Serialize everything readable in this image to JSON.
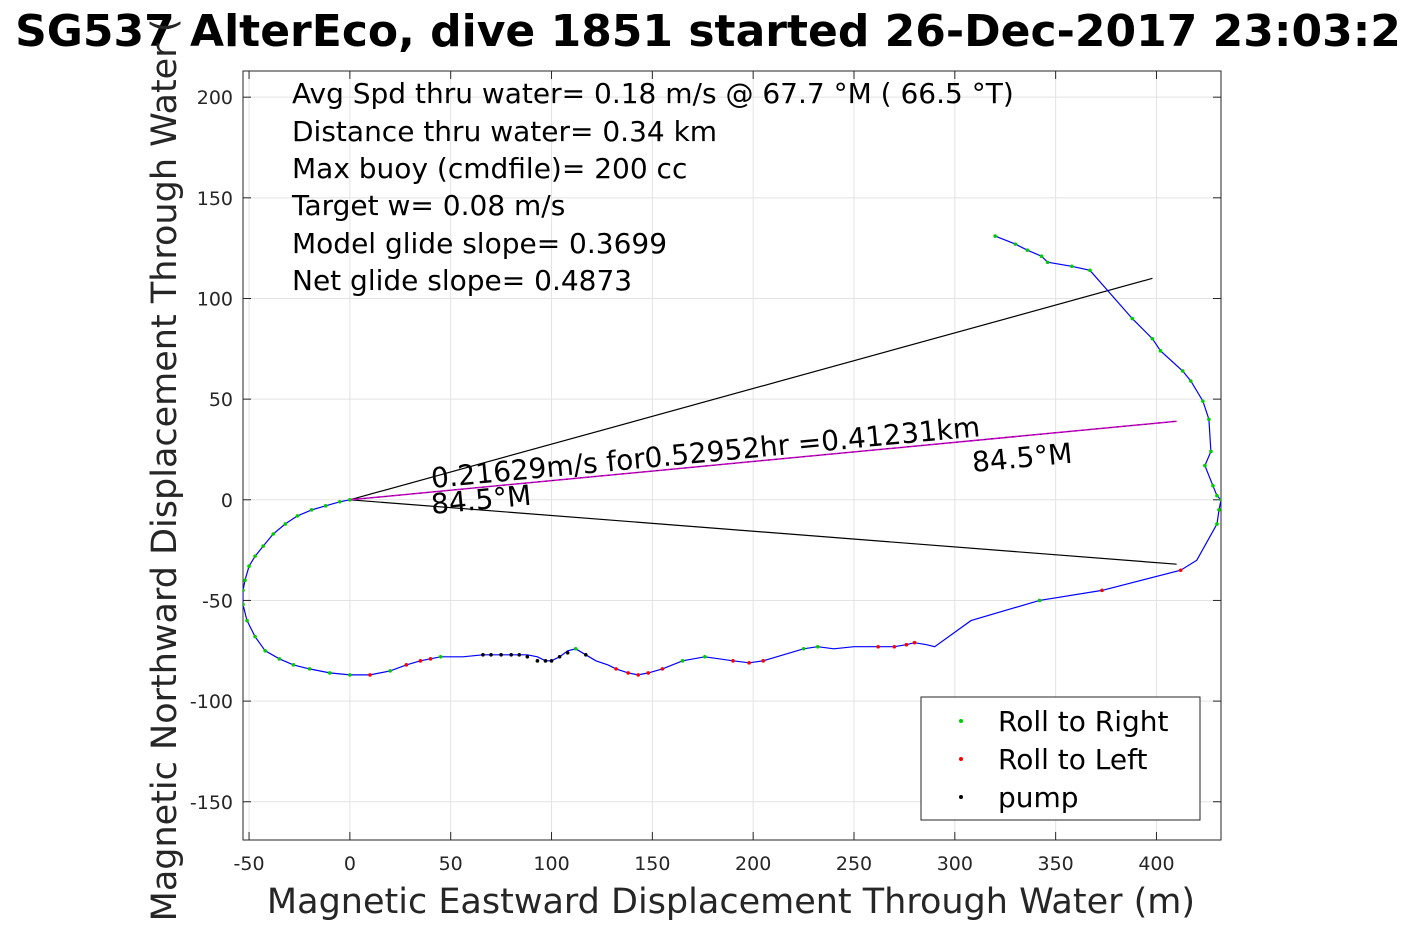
{
  "chart_data": {
    "type": "scatter",
    "title": "SG537 AlterEco, dive 1851 started 26-Dec-2017 23:03:2",
    "xlabel": "Magnetic Eastward Displacement Through Water (m)",
    "ylabel": "Magnetic Northward Displacement Through Water (",
    "xlim": [
      -53,
      432
    ],
    "ylim": [
      -169,
      213
    ],
    "xticks": [
      -50,
      0,
      50,
      100,
      150,
      200,
      250,
      300,
      350,
      400
    ],
    "yticks": [
      -150,
      -100,
      -50,
      0,
      50,
      100,
      150,
      200
    ],
    "grid": true,
    "legend_position": "bottom-right",
    "colors": {
      "track": "#0000ff",
      "roll_right": "#00cc00",
      "roll_left": "#ff0000",
      "pump": "#000000",
      "envelope": "#000000",
      "current_line": "#cc00cc"
    },
    "annotations": [
      "Avg Spd thru water=  0.18 m/s @  67.7 °M ( 66.5 °T)",
      "Distance thru water=  0.34 km",
      "Max buoy (cmdfile)= 200 cc",
      "Target w= 0.08 m/s",
      "Model glide slope= 0.3699",
      "Net glide slope= 0.4873"
    ],
    "line_labels": {
      "speed": "0.21629m/s for0.52952hr =0.41231km",
      "heading_start": "84.5°M",
      "heading_end": "84.5°M"
    },
    "envelope_lines": [
      {
        "x": [
          0,
          398
        ],
        "y": [
          0,
          110
        ]
      },
      {
        "x": [
          0,
          410
        ],
        "y": [
          0,
          -32
        ]
      }
    ],
    "current_line": {
      "x": [
        0,
        410
      ],
      "y": [
        0,
        39
      ]
    },
    "track": {
      "x": [
        320,
        330,
        336,
        343,
        346,
        358,
        367,
        388,
        398,
        402,
        413,
        417,
        423,
        426,
        427,
        424,
        428,
        430,
        432,
        431,
        430,
        420,
        412,
        373,
        342,
        308,
        290,
        286,
        280,
        276,
        270,
        262,
        250,
        240,
        232,
        225,
        205,
        198,
        190,
        176,
        165,
        155,
        148,
        143,
        138,
        132,
        128,
        122,
        117,
        112,
        108,
        104,
        100,
        97,
        93,
        88,
        84,
        75,
        66,
        56,
        45,
        40,
        35,
        28,
        20,
        10,
        0,
        -10,
        -20,
        -28,
        -35,
        -42,
        -47,
        -51,
        -53,
        -53,
        -52,
        -50,
        -47,
        -43,
        -38,
        -32,
        -26,
        -19,
        -12,
        -5,
        0
      ],
      "y": [
        131,
        127,
        124,
        121,
        118,
        116,
        114,
        90,
        80,
        74,
        64,
        59,
        49,
        40,
        24,
        17,
        7,
        2,
        0,
        -5,
        -12,
        -30,
        -35,
        -45,
        -50,
        -60,
        -73,
        -72,
        -71,
        -72,
        -73,
        -73,
        -73,
        -74,
        -73,
        -74,
        -80,
        -81,
        -80,
        -78,
        -80,
        -84,
        -86,
        -87,
        -86,
        -84,
        -82,
        -80,
        -77,
        -74,
        -75,
        -78,
        -80,
        -80,
        -78,
        -77,
        -77,
        -77,
        -77,
        -78,
        -78,
        -79,
        -80,
        -82,
        -85,
        -87,
        -87,
        -86,
        -84,
        -82,
        -79,
        -75,
        -68,
        -60,
        -52,
        -45,
        -40,
        -33,
        -28,
        -23,
        -17,
        -12,
        -8,
        -5,
        -3,
        -1,
        0
      ]
    },
    "series": [
      {
        "name": "Roll to Right",
        "x": [
          320,
          330,
          336,
          343,
          346,
          358,
          367,
          388,
          398,
          402,
          413,
          417,
          423,
          426,
          427,
          424,
          428,
          430,
          432,
          431,
          430,
          373,
          342,
          232,
          225,
          176,
          165,
          112,
          45,
          20,
          0,
          -10,
          -20,
          -28,
          -35,
          -42,
          -47,
          -51,
          -53,
          -53,
          -52,
          -50,
          -47,
          -43,
          -38,
          -32,
          -26,
          -19,
          -12,
          -5,
          0
        ],
        "y": [
          131,
          127,
          124,
          121,
          118,
          116,
          114,
          90,
          80,
          74,
          64,
          59,
          49,
          40,
          24,
          17,
          7,
          2,
          0,
          -5,
          -12,
          -45,
          -50,
          -73,
          -74,
          -78,
          -80,
          -74,
          -78,
          -85,
          -87,
          -86,
          -84,
          -82,
          -79,
          -75,
          -68,
          -60,
          -52,
          -45,
          -40,
          -33,
          -28,
          -23,
          -17,
          -12,
          -8,
          -5,
          -3,
          -1,
          0
        ]
      },
      {
        "name": "Roll to Left",
        "x": [
          412,
          373,
          280,
          276,
          270,
          262,
          205,
          198,
          190,
          155,
          148,
          143,
          138,
          132,
          40,
          35,
          28,
          10
        ],
        "y": [
          -35,
          -45,
          -71,
          -72,
          -73,
          -73,
          -80,
          -81,
          -80,
          -84,
          -86,
          -87,
          -86,
          -84,
          -79,
          -80,
          -82,
          -87
        ]
      },
      {
        "name": "pump",
        "x": [
          66,
          70,
          75,
          80,
          84,
          88,
          93,
          97,
          100,
          104,
          108,
          117
        ],
        "y": [
          -77,
          -77,
          -77,
          -77,
          -77,
          -78,
          -80,
          -80,
          -80,
          -78,
          -76,
          -77
        ]
      }
    ]
  }
}
